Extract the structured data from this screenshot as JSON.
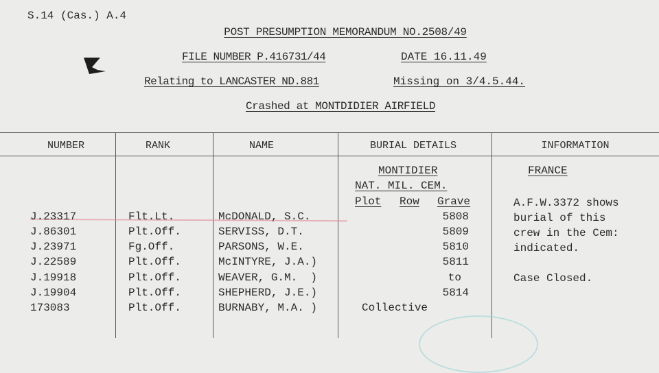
{
  "form_code": "S.14 (Cas.) A.4",
  "header": {
    "title": "POST PRESUMPTION MEMORANDUM NO.2508/49",
    "file_number": "FILE NUMBER P.416731/44",
    "date": "DATE 16.11.49",
    "relating": "Relating to LANCASTER ND.881",
    "missing": "Missing on 3/4.5.44.",
    "crashed": "Crashed at MONTDIDIER AIRFIELD"
  },
  "columns": [
    "NUMBER",
    "RANK",
    "NAME",
    "BURIAL DETAILS",
    "INFORMATION"
  ],
  "burial": {
    "place": "MONTIDIER",
    "cemetery": "NAT. MIL. CEM.",
    "plot": "Plot",
    "row": "Row",
    "grave": "Grave",
    "graves": [
      "5808",
      "5809",
      "5810",
      "5811",
      "to",
      "5814"
    ],
    "collective": "Collective"
  },
  "information": {
    "country": "FRANCE",
    "lines": [
      "A.F.W.3372 shows",
      "burial of this",
      "crew in the Cem:",
      "indicated."
    ],
    "status": "Case Closed."
  },
  "rows": [
    {
      "number": "J.23317",
      "rank": "Flt.Lt.",
      "name": "McDONALD, S.C."
    },
    {
      "number": "J.86301",
      "rank": "Plt.Off.",
      "name": "SERVISS, D.T."
    },
    {
      "number": "J.23971",
      "rank": "Fg.Off.",
      "name": "PARSONS, W.E."
    },
    {
      "number": "J.22589",
      "rank": "Plt.Off.",
      "name": "McINTYRE, J.A.)"
    },
    {
      "number": "J.19918",
      "rank": "Plt.Off.",
      "name": "WEAVER, G.M.  )"
    },
    {
      "number": "J.19904",
      "rank": "Plt.Off.",
      "name": "SHEPHERD, J.E.)"
    },
    {
      "number": "173083",
      "rank": "Plt.Off.",
      "name": "BURNABY, M.A. )"
    }
  ]
}
